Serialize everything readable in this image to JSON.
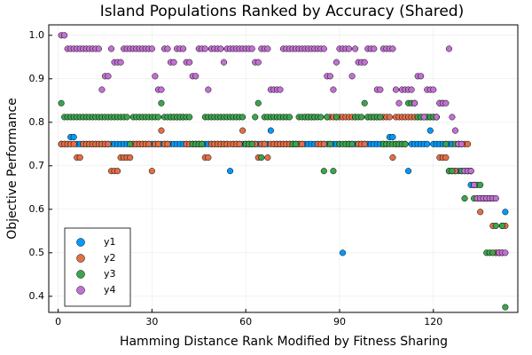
{
  "chart_data": {
    "type": "scatter",
    "title": "Island Populations Ranked by Accuracy (Shared)",
    "x_label": "Hamming Distance Rank Modified by Fitness Sharing",
    "y_label": "Objective Performance",
    "xlim": [
      -3,
      147
    ],
    "xticks": [
      0,
      30,
      60,
      90,
      120
    ],
    "ylim": [
      0.363,
      1.024
    ],
    "yticks": [
      0.4,
      0.5,
      0.6,
      0.7,
      0.8,
      0.9,
      {
        "value": 1,
        "label": "1.0"
      }
    ],
    "grid": true,
    "legend": "bottom left",
    "x": [
      1,
      2,
      3,
      4,
      5,
      6,
      7,
      8,
      9,
      10,
      11,
      12,
      13,
      14,
      15,
      16,
      17,
      18,
      19,
      20,
      21,
      22,
      23,
      24,
      25,
      26,
      27,
      28,
      29,
      30,
      31,
      32,
      33,
      34,
      35,
      36,
      37,
      38,
      39,
      40,
      41,
      42,
      43,
      44,
      45,
      46,
      47,
      48,
      49,
      50,
      51,
      52,
      53,
      54,
      55,
      56,
      57,
      58,
      59,
      60,
      61,
      62,
      63,
      64,
      65,
      66,
      67,
      68,
      69,
      70,
      71,
      72,
      73,
      74,
      75,
      76,
      77,
      78,
      79,
      80,
      81,
      82,
      83,
      84,
      85,
      86,
      87,
      88,
      89,
      90,
      91,
      92,
      93,
      94,
      95,
      96,
      97,
      98,
      99,
      100,
      101,
      102,
      103,
      104,
      105,
      106,
      107,
      108,
      109,
      110,
      111,
      112,
      113,
      114,
      115,
      116,
      117,
      118,
      119,
      120,
      121,
      122,
      123,
      124,
      125,
      126,
      127,
      128,
      129,
      130,
      131,
      132,
      133,
      134,
      135,
      136,
      137,
      138,
      139,
      140,
      141,
      142,
      143
    ],
    "series": [
      {
        "name": "y1",
        "color": "#009afa",
        "values": [
          0.75,
          0.75,
          0.75,
          0.766,
          0.766,
          0.75,
          0.75,
          0.75,
          0.75,
          0.75,
          0.75,
          0.75,
          0.75,
          0.75,
          0.75,
          0.75,
          0.75,
          0.75,
          0.75,
          0.75,
          0.75,
          0.75,
          0.75,
          0.75,
          0.75,
          0.75,
          0.75,
          0.75,
          0.75,
          0.75,
          0.75,
          0.75,
          0.75,
          0.75,
          0.75,
          0.75,
          0.75,
          0.75,
          0.75,
          0.75,
          0.75,
          0.75,
          0.75,
          0.75,
          0.75,
          0.75,
          0.75,
          0.75,
          0.75,
          0.75,
          0.75,
          0.75,
          0.75,
          0.75,
          0.688,
          0.75,
          0.75,
          0.75,
          0.75,
          0.75,
          0.75,
          0.75,
          0.75,
          0.75,
          0.75,
          0.75,
          0.75,
          0.781,
          0.75,
          0.75,
          0.75,
          0.75,
          0.75,
          0.75,
          0.75,
          0.75,
          0.75,
          0.75,
          0.75,
          0.75,
          0.75,
          0.75,
          0.75,
          0.75,
          0.75,
          0.75,
          0.75,
          0.75,
          0.75,
          0.75,
          0.5,
          0.75,
          0.75,
          0.75,
          0.75,
          0.75,
          0.75,
          0.75,
          0.75,
          0.75,
          0.75,
          0.75,
          0.75,
          0.75,
          0.75,
          0.766,
          0.766,
          0.75,
          0.75,
          0.75,
          0.75,
          0.688,
          0.75,
          0.75,
          0.75,
          0.75,
          0.75,
          0.75,
          0.781,
          0.75,
          0.75,
          0.75,
          0.75,
          0.75,
          0.75,
          0.75,
          0.688,
          0.688,
          0.688,
          0.688,
          0.688,
          0.656,
          0.656,
          0.625,
          0.625,
          0.625,
          0.625,
          0.625,
          0.625,
          0.5,
          0.5,
          0.5,
          0.594
        ]
      },
      {
        "name": "y2",
        "color": "#e26f46",
        "values": [
          0.75,
          0.75,
          0.75,
          0.75,
          0.75,
          0.719,
          0.719,
          0.75,
          0.75,
          0.75,
          0.75,
          0.75,
          0.75,
          0.75,
          0.75,
          0.75,
          0.688,
          0.688,
          0.688,
          0.719,
          0.719,
          0.719,
          0.719,
          0.75,
          0.75,
          0.75,
          0.75,
          0.75,
          0.75,
          0.688,
          0.75,
          0.75,
          0.781,
          0.75,
          0.75,
          0.812,
          0.812,
          0.812,
          0.812,
          0.812,
          0.75,
          0.75,
          0.75,
          0.75,
          0.75,
          0.75,
          0.719,
          0.719,
          0.75,
          0.75,
          0.75,
          0.75,
          0.75,
          0.75,
          0.75,
          0.75,
          0.75,
          0.75,
          0.781,
          0.75,
          0.75,
          0.75,
          0.75,
          0.719,
          0.75,
          0.75,
          0.719,
          0.75,
          0.75,
          0.75,
          0.75,
          0.75,
          0.75,
          0.75,
          0.75,
          0.75,
          0.75,
          0.75,
          0.812,
          0.812,
          0.812,
          0.812,
          0.75,
          0.75,
          0.75,
          0.812,
          0.812,
          0.812,
          0.812,
          0.812,
          0.812,
          0.812,
          0.812,
          0.812,
          0.812,
          0.75,
          0.75,
          0.75,
          0.812,
          0.812,
          0.812,
          0.812,
          0.812,
          0.812,
          0.812,
          0.812,
          0.719,
          0.812,
          0.812,
          0.812,
          0.812,
          0.812,
          0.812,
          0.812,
          0.812,
          0.812,
          0.812,
          0.812,
          0.812,
          0.812,
          0.812,
          0.719,
          0.719,
          0.719,
          0.688,
          0.688,
          0.688,
          0.75,
          0.75,
          0.75,
          0.75,
          0.688,
          0.656,
          0.625,
          0.594,
          0.625,
          0.625,
          0.625,
          0.562,
          0.5,
          0.5,
          0.562,
          0.562
        ]
      },
      {
        "name": "y3",
        "color": "#3da44d",
        "values": [
          0.844,
          0.812,
          0.812,
          0.812,
          0.812,
          0.812,
          0.812,
          0.812,
          0.812,
          0.812,
          0.812,
          0.812,
          0.812,
          0.812,
          0.812,
          0.812,
          0.812,
          0.812,
          0.812,
          0.812,
          0.812,
          0.812,
          0.75,
          0.812,
          0.812,
          0.812,
          0.812,
          0.812,
          0.812,
          0.812,
          0.812,
          0.812,
          0.844,
          0.812,
          0.812,
          0.812,
          0.812,
          0.812,
          0.812,
          0.812,
          0.812,
          0.812,
          0.75,
          0.75,
          0.75,
          0.75,
          0.812,
          0.812,
          0.812,
          0.812,
          0.812,
          0.812,
          0.812,
          0.812,
          0.812,
          0.812,
          0.812,
          0.812,
          0.812,
          0.75,
          0.75,
          0.75,
          0.812,
          0.844,
          0.719,
          0.812,
          0.812,
          0.812,
          0.812,
          0.812,
          0.812,
          0.812,
          0.812,
          0.812,
          0.75,
          0.75,
          0.812,
          0.812,
          0.812,
          0.812,
          0.812,
          0.812,
          0.812,
          0.812,
          0.688,
          0.812,
          0.75,
          0.688,
          0.812,
          0.75,
          0.75,
          0.75,
          0.75,
          0.75,
          0.812,
          0.812,
          0.812,
          0.844,
          0.812,
          0.812,
          0.812,
          0.812,
          0.812,
          0.75,
          0.75,
          0.75,
          0.75,
          0.75,
          0.75,
          0.75,
          0.75,
          0.844,
          0.844,
          0.844,
          0.812,
          0.812,
          0.812,
          0.812,
          0.812,
          0.812,
          0.812,
          0.844,
          0.844,
          0.75,
          0.688,
          0.688,
          0.75,
          0.75,
          0.688,
          0.625,
          0.688,
          0.688,
          0.625,
          0.656,
          0.656,
          0.625,
          0.5,
          0.5,
          0.5,
          0.562,
          0.5,
          0.562,
          0.375
        ]
      },
      {
        "name": "y4",
        "color": "#c271d2",
        "values": [
          1.0,
          1.0,
          0.969,
          0.969,
          0.969,
          0.969,
          0.969,
          0.969,
          0.969,
          0.969,
          0.969,
          0.969,
          0.969,
          0.875,
          0.906,
          0.906,
          0.969,
          0.938,
          0.938,
          0.938,
          0.969,
          0.969,
          0.969,
          0.969,
          0.969,
          0.969,
          0.969,
          0.969,
          0.969,
          0.969,
          0.906,
          0.875,
          0.875,
          0.969,
          0.969,
          0.938,
          0.938,
          0.969,
          0.969,
          0.969,
          0.938,
          0.938,
          0.906,
          0.906,
          0.969,
          0.969,
          0.969,
          0.875,
          0.969,
          0.969,
          0.969,
          0.969,
          0.938,
          0.969,
          0.969,
          0.969,
          0.969,
          0.969,
          0.969,
          0.969,
          0.969,
          0.969,
          0.938,
          0.938,
          0.969,
          0.969,
          0.969,
          0.875,
          0.875,
          0.875,
          0.875,
          0.969,
          0.969,
          0.969,
          0.969,
          0.969,
          0.969,
          0.969,
          0.969,
          0.969,
          0.969,
          0.969,
          0.969,
          0.969,
          0.969,
          0.906,
          0.906,
          0.875,
          0.938,
          0.969,
          0.969,
          0.969,
          0.969,
          0.906,
          0.969,
          0.938,
          0.938,
          0.938,
          0.969,
          0.969,
          0.969,
          0.875,
          0.875,
          0.969,
          0.969,
          0.969,
          0.969,
          0.875,
          0.844,
          0.875,
          0.875,
          0.875,
          0.875,
          0.844,
          0.906,
          0.906,
          0.812,
          0.875,
          0.875,
          0.875,
          0.812,
          0.844,
          0.844,
          0.844,
          0.969,
          0.812,
          0.781,
          0.75,
          0.75,
          0.688,
          0.688,
          0.688,
          0.656,
          0.625,
          0.625,
          0.625,
          0.625,
          0.625,
          0.625,
          0.625,
          0.5,
          0.5,
          0.5
        ]
      }
    ]
  }
}
